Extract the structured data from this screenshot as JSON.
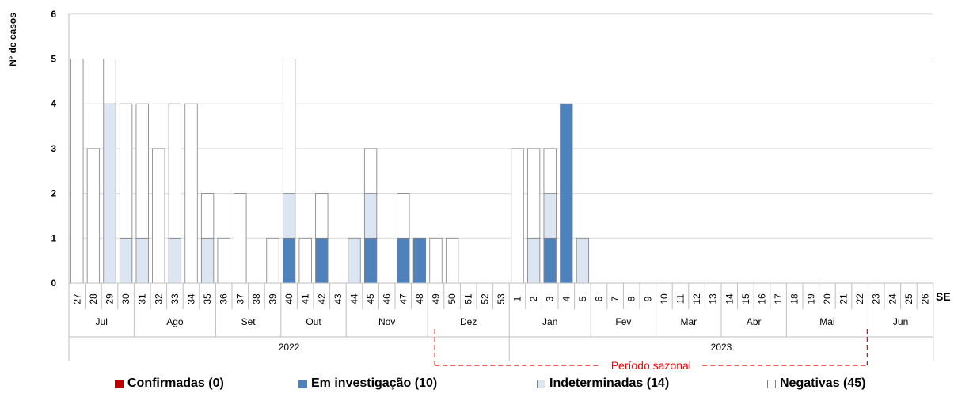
{
  "chart_data": {
    "type": "bar",
    "stacked": true,
    "ylabel": "Nº de casos",
    "xlabel": "SE",
    "ylim": [
      0,
      6
    ],
    "yticks": [
      0,
      1,
      2,
      3,
      4,
      5,
      6
    ],
    "grid": true,
    "categories": [
      "27",
      "28",
      "29",
      "30",
      "31",
      "32",
      "33",
      "34",
      "35",
      "36",
      "37",
      "38",
      "39",
      "40",
      "41",
      "42",
      "43",
      "44",
      "45",
      "46",
      "47",
      "48",
      "49",
      "50",
      "51",
      "52",
      "53",
      "1",
      "2",
      "3",
      "4",
      "5",
      "6",
      "7",
      "8",
      "9",
      "10",
      "11",
      "12",
      "13",
      "14",
      "15",
      "16",
      "17",
      "18",
      "19",
      "20",
      "21",
      "22",
      "23",
      "24",
      "25",
      "26"
    ],
    "series": [
      {
        "name": "Confirmadas (0)",
        "color": "#c00000",
        "values": [
          0,
          0,
          0,
          0,
          0,
          0,
          0,
          0,
          0,
          0,
          0,
          0,
          0,
          0,
          0,
          0,
          0,
          0,
          0,
          0,
          0,
          0,
          0,
          0,
          0,
          0,
          0,
          0,
          0,
          0,
          0,
          0,
          0,
          0,
          0,
          0,
          0,
          0,
          0,
          0,
          0,
          0,
          0,
          0,
          0,
          0,
          0,
          0,
          0,
          0,
          0,
          0,
          0
        ]
      },
      {
        "name": "Em investigação (10)",
        "color": "#4f81bd",
        "values": [
          0,
          0,
          0,
          0,
          0,
          0,
          0,
          0,
          0,
          0,
          0,
          0,
          0,
          1,
          0,
          1,
          0,
          0,
          1,
          0,
          1,
          1,
          0,
          0,
          0,
          0,
          0,
          0,
          0,
          1,
          4,
          0,
          0,
          0,
          0,
          0,
          0,
          0,
          0,
          0,
          0,
          0,
          0,
          0,
          0,
          0,
          0,
          0,
          0,
          0,
          0,
          0,
          0
        ]
      },
      {
        "name": "Indeterminadas (14)",
        "color": "#dce6f2",
        "values": [
          0,
          0,
          4,
          1,
          1,
          0,
          1,
          0,
          1,
          0,
          0,
          0,
          0,
          1,
          0,
          0,
          0,
          1,
          1,
          0,
          0,
          0,
          0,
          0,
          0,
          0,
          0,
          0,
          1,
          1,
          0,
          1,
          0,
          0,
          0,
          0,
          0,
          0,
          0,
          0,
          0,
          0,
          0,
          0,
          0,
          0,
          0,
          0,
          0,
          0,
          0,
          0,
          0
        ]
      },
      {
        "name": "Negativas (45)",
        "color": "#ffffff",
        "values": [
          5,
          3,
          1,
          3,
          3,
          3,
          3,
          4,
          1,
          1,
          2,
          0,
          1,
          3,
          1,
          1,
          0,
          0,
          1,
          0,
          1,
          0,
          1,
          1,
          0,
          0,
          0,
          3,
          2,
          1,
          0,
          0,
          0,
          0,
          0,
          0,
          0,
          0,
          0,
          0,
          0,
          0,
          0,
          0,
          0,
          0,
          0,
          0,
          0,
          0,
          0,
          0,
          0
        ]
      }
    ],
    "months": [
      {
        "label": "Jul",
        "start": 0,
        "end": 3
      },
      {
        "label": "Ago",
        "start": 4,
        "end": 8
      },
      {
        "label": "Set",
        "start": 9,
        "end": 12
      },
      {
        "label": "Out",
        "start": 13,
        "end": 16
      },
      {
        "label": "Nov",
        "start": 17,
        "end": 21
      },
      {
        "label": "Dez",
        "start": 22,
        "end": 26
      },
      {
        "label": "Jan",
        "start": 27,
        "end": 31
      },
      {
        "label": "Fev",
        "start": 32,
        "end": 35
      },
      {
        "label": "Mar",
        "start": 36,
        "end": 39
      },
      {
        "label": "Abr",
        "start": 40,
        "end": 43
      },
      {
        "label": "Mai",
        "start": 44,
        "end": 48
      },
      {
        "label": "Jun",
        "start": 49,
        "end": 52
      }
    ],
    "years": [
      {
        "label": "2022",
        "start": 0,
        "end": 26
      },
      {
        "label": "2023",
        "start": 27,
        "end": 52
      }
    ],
    "annotation": {
      "label": "Período sazonal",
      "start": 22,
      "end": 48,
      "color": "#ff0000"
    },
    "legend_position": "bottom"
  },
  "legend": [
    {
      "label": "Confirmadas (0)",
      "color": "#c00000"
    },
    {
      "label": "Em investigação (10)",
      "color": "#4f81bd"
    },
    {
      "label": "Indeterminadas (14)",
      "color": "#dce6f2"
    },
    {
      "label": "Negativas (45)",
      "color": "#ffffff"
    }
  ]
}
